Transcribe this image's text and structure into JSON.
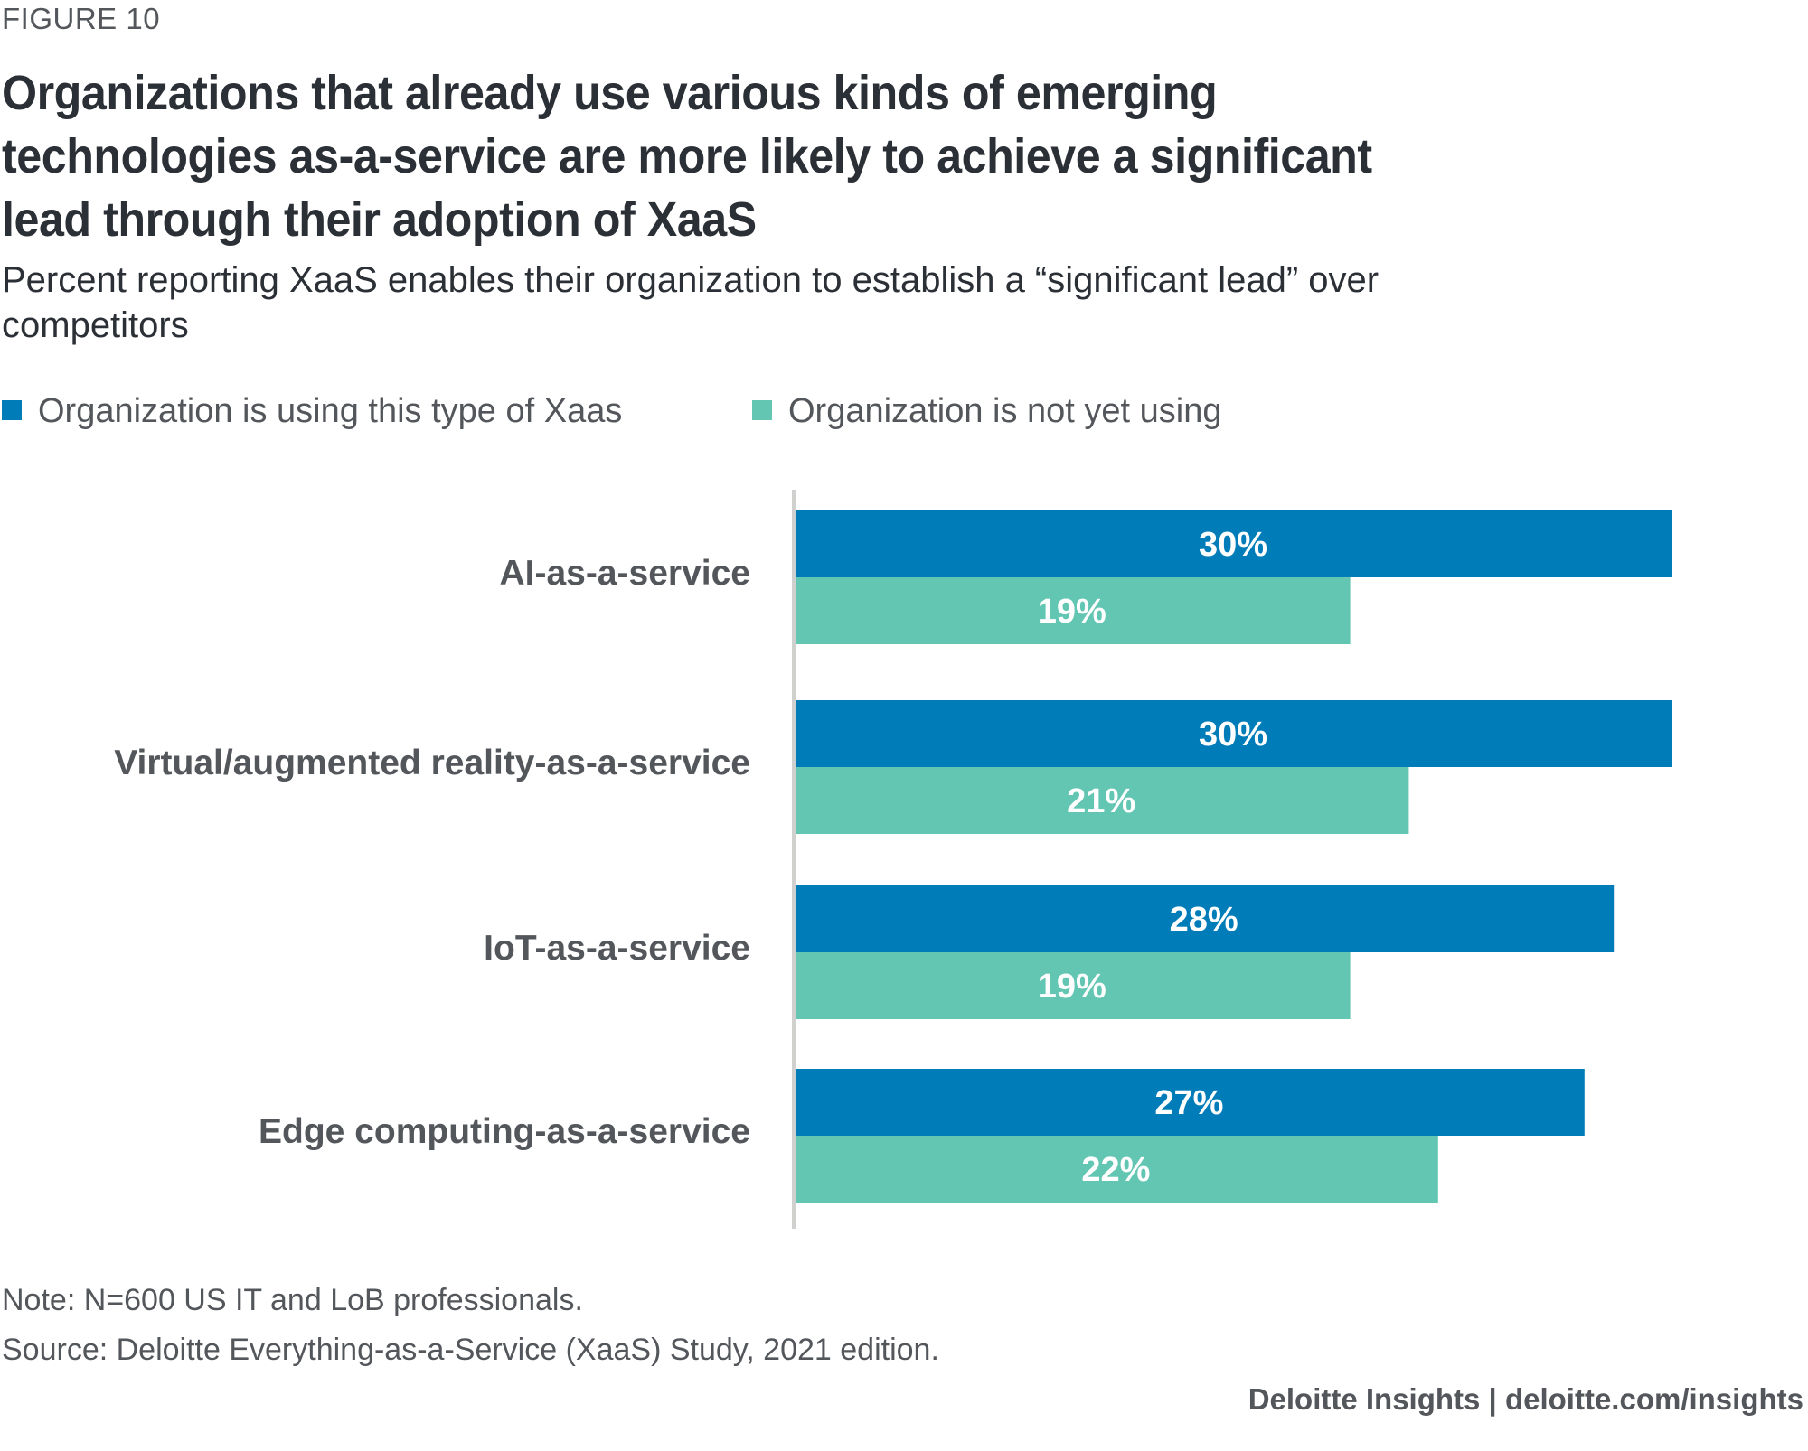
{
  "figure_label": "FIGURE 10",
  "title": "Organizations that already use various kinds of emerging technologies as-a-service are more likely to achieve a significant lead through their adoption of XaaS",
  "subtitle": "Percent reporting XaaS enables their organization to establish a “significant lead” over competitors",
  "chart_data": {
    "type": "bar",
    "orientation": "horizontal",
    "categories": [
      "AI-as-a-service",
      "Virtual/augmented reality-as-a-service",
      "IoT-as-a-service",
      "Edge computing-as-a-service"
    ],
    "series": [
      {
        "name": "Organization is using this type of Xaas",
        "values": [
          30,
          30,
          28,
          27
        ],
        "labels": [
          "30%",
          "30%",
          "28%",
          "27%"
        ],
        "color": "#007cb9"
      },
      {
        "name": "Organization is not yet using",
        "values": [
          19,
          21,
          19,
          22
        ],
        "labels": [
          "19%",
          "21%",
          "19%",
          "22%"
        ],
        "color": "#62c6b2"
      }
    ],
    "xlim": [
      0,
      30
    ],
    "grid": false,
    "legend": "top-left"
  },
  "colors": {
    "axis": "#d0d0ce",
    "label_text": "#53565a",
    "title_text": "#2b2f36"
  },
  "note": "Note: N=600 US IT and LoB professionals.",
  "source": "Source: Deloitte Everything-as-a-Service (XaaS) Study, 2021 edition.",
  "brand": "Deloitte Insights | deloitte.com/insights"
}
